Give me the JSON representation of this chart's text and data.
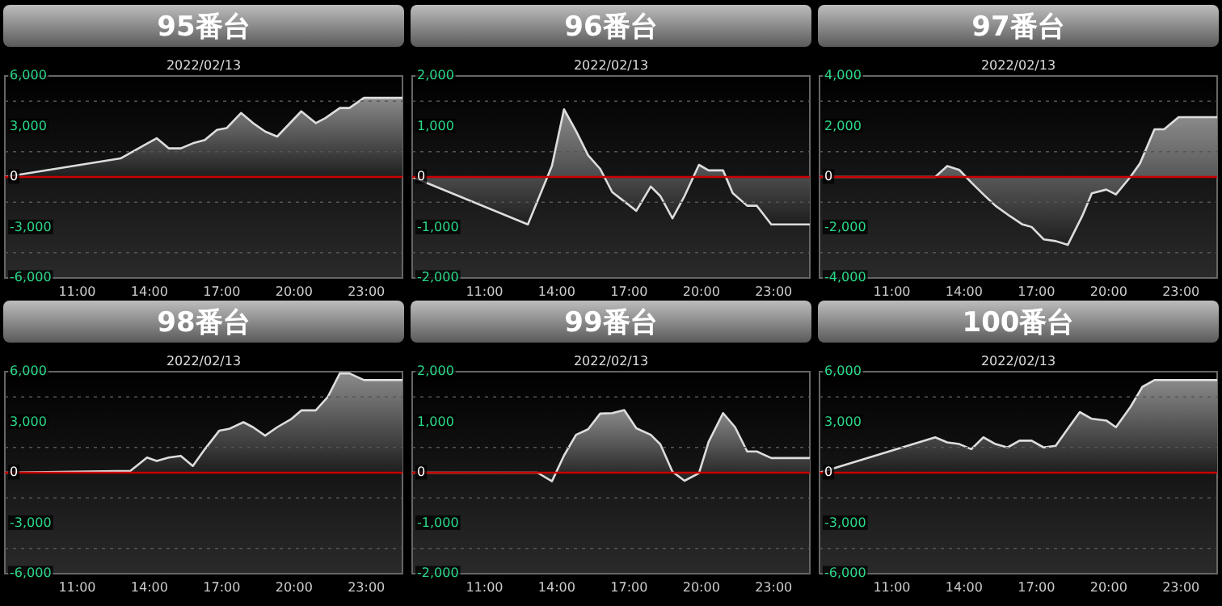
{
  "chart_data": [
    {
      "type": "area",
      "title": "95番台",
      "subtitle": "2022/02/13",
      "color": "#dddddd",
      "xlim": [
        8,
        24.5
      ],
      "xticks": [
        {
          "value": 11,
          "label": "11:00"
        },
        {
          "value": 14,
          "label": "14:00"
        },
        {
          "value": 17,
          "label": "17:00"
        },
        {
          "value": 20,
          "label": "20:00"
        },
        {
          "value": 23,
          "label": "23:00"
        }
      ],
      "ylim": [
        -6000,
        6000
      ],
      "yticks": [
        {
          "value": -6000,
          "label": "-6,000"
        },
        {
          "value": -4500,
          "label": null
        },
        {
          "value": -3000,
          "label": "-3,000"
        },
        {
          "value": -1500,
          "label": null
        },
        {
          "value": 0,
          "label": "0"
        },
        {
          "value": 1500,
          "label": null
        },
        {
          "value": 3000,
          "label": "3,000"
        },
        {
          "value": 4500,
          "label": null
        },
        {
          "value": 6000,
          "label": "6,000"
        }
      ],
      "grid": "y",
      "ref_lines": [
        {
          "axis": "y",
          "value": 0,
          "color": "#cc0000"
        }
      ],
      "x": [
        8,
        12.8,
        13.8,
        14.3,
        14.8,
        15.3,
        15.8,
        16.3,
        16.8,
        17.2,
        17.8,
        18.3,
        18.8,
        19.3,
        19.9,
        20.3,
        20.9,
        21.3,
        21.9,
        22.3,
        22.9,
        24.5
      ],
      "values": [
        0,
        1100,
        1900,
        2300,
        1700,
        1700,
        2000,
        2200,
        2800,
        2900,
        3800,
        3200,
        2700,
        2400,
        3300,
        3900,
        3200,
        3500,
        4100,
        4100,
        4700,
        4700
      ]
    },
    {
      "type": "area",
      "title": "96番台",
      "subtitle": "2022/02/13",
      "color": "#dddddd",
      "xlim": [
        8,
        24.5
      ],
      "xticks": [
        {
          "value": 11,
          "label": "11:00"
        },
        {
          "value": 14,
          "label": "14:00"
        },
        {
          "value": 17,
          "label": "17:00"
        },
        {
          "value": 20,
          "label": "20:00"
        },
        {
          "value": 23,
          "label": "23:00"
        }
      ],
      "ylim": [
        -2000,
        2000
      ],
      "yticks": [
        {
          "value": -2000,
          "label": "-2,000"
        },
        {
          "value": -1500,
          "label": null
        },
        {
          "value": -1000,
          "label": "-1,000"
        },
        {
          "value": -500,
          "label": null
        },
        {
          "value": 0,
          "label": "0"
        },
        {
          "value": 500,
          "label": null
        },
        {
          "value": 1000,
          "label": "1,000"
        },
        {
          "value": 1500,
          "label": null
        },
        {
          "value": 2000,
          "label": "2,000"
        }
      ],
      "grid": "y",
      "ref_lines": [
        {
          "axis": "y",
          "value": 0,
          "color": "#cc0000"
        }
      ],
      "x": [
        8,
        12.8,
        13.8,
        14.3,
        14.8,
        15.3,
        15.8,
        16.3,
        17.3,
        17.9,
        18.3,
        18.8,
        19.3,
        19.9,
        20.3,
        20.9,
        21.3,
        21.9,
        22.3,
        22.9,
        24.5
      ],
      "values": [
        0,
        -940,
        220,
        1340,
        910,
        430,
        160,
        -300,
        -670,
        -190,
        -380,
        -820,
        -380,
        240,
        130,
        130,
        -320,
        -570,
        -570,
        -940,
        -940
      ]
    },
    {
      "type": "area",
      "title": "97番台",
      "subtitle": "2022/02/13",
      "color": "#dddddd",
      "xlim": [
        8,
        24.5
      ],
      "xticks": [
        {
          "value": 11,
          "label": "11:00"
        },
        {
          "value": 14,
          "label": "14:00"
        },
        {
          "value": 17,
          "label": "17:00"
        },
        {
          "value": 20,
          "label": "20:00"
        },
        {
          "value": 23,
          "label": "23:00"
        }
      ],
      "ylim": [
        -4000,
        4000
      ],
      "yticks": [
        {
          "value": -4000,
          "label": "-4,000"
        },
        {
          "value": -3000,
          "label": null
        },
        {
          "value": -2000,
          "label": "-2,000"
        },
        {
          "value": -1000,
          "label": null
        },
        {
          "value": 0,
          "label": "0"
        },
        {
          "value": 1000,
          "label": null
        },
        {
          "value": 2000,
          "label": "2,000"
        },
        {
          "value": 3000,
          "label": null
        },
        {
          "value": 4000,
          "label": "4,000"
        }
      ],
      "grid": "y",
      "ref_lines": [
        {
          "axis": "y",
          "value": 0,
          "color": "#cc0000"
        }
      ],
      "x": [
        8,
        12.8,
        13.3,
        13.8,
        14.3,
        14.8,
        15.3,
        15.9,
        16.4,
        16.8,
        17.3,
        17.8,
        18.3,
        18.9,
        19.3,
        19.9,
        20.3,
        20.9,
        21.3,
        21.9,
        22.3,
        22.9,
        24.5
      ],
      "values": [
        0,
        0,
        430,
        280,
        -220,
        -690,
        -1140,
        -1550,
        -1870,
        -1980,
        -2470,
        -2540,
        -2690,
        -1550,
        -650,
        -500,
        -690,
        0,
        540,
        1890,
        1890,
        2370,
        2370
      ]
    },
    {
      "type": "area",
      "title": "98番台",
      "subtitle": "2022/02/13",
      "color": "#dddddd",
      "xlim": [
        8,
        24.5
      ],
      "xticks": [
        {
          "value": 11,
          "label": "11:00"
        },
        {
          "value": 14,
          "label": "14:00"
        },
        {
          "value": 17,
          "label": "17:00"
        },
        {
          "value": 20,
          "label": "20:00"
        },
        {
          "value": 23,
          "label": "23:00"
        }
      ],
      "ylim": [
        -6000,
        6000
      ],
      "yticks": [
        {
          "value": -6000,
          "label": "-6,000"
        },
        {
          "value": -4500,
          "label": null
        },
        {
          "value": -3000,
          "label": "-3,000"
        },
        {
          "value": -1500,
          "label": null
        },
        {
          "value": 0,
          "label": "0"
        },
        {
          "value": 1500,
          "label": null
        },
        {
          "value": 3000,
          "label": "3,000"
        },
        {
          "value": 4500,
          "label": null
        },
        {
          "value": 6000,
          "label": "6,000"
        }
      ],
      "grid": "y",
      "ref_lines": [
        {
          "axis": "y",
          "value": 0,
          "color": "#cc0000"
        }
      ],
      "x": [
        8,
        13.2,
        13.9,
        14.3,
        14.8,
        15.3,
        15.8,
        16.3,
        16.9,
        17.3,
        17.9,
        18.3,
        18.8,
        19.3,
        19.9,
        20.3,
        20.9,
        21.4,
        21.9,
        22.3,
        22.9,
        24.5
      ],
      "values": [
        0,
        100,
        900,
        700,
        900,
        1000,
        400,
        1400,
        2500,
        2600,
        3000,
        2700,
        2200,
        2700,
        3200,
        3700,
        3700,
        4500,
        5900,
        5900,
        5500,
        5500
      ]
    },
    {
      "type": "area",
      "title": "99番台",
      "subtitle": "2022/02/13",
      "color": "#dddddd",
      "xlim": [
        8,
        24.5
      ],
      "xticks": [
        {
          "value": 11,
          "label": "11:00"
        },
        {
          "value": 14,
          "label": "14:00"
        },
        {
          "value": 17,
          "label": "17:00"
        },
        {
          "value": 20,
          "label": "20:00"
        },
        {
          "value": 23,
          "label": "23:00"
        }
      ],
      "ylim": [
        -2000,
        2000
      ],
      "yticks": [
        {
          "value": -2000,
          "label": "-2,000"
        },
        {
          "value": -1500,
          "label": null
        },
        {
          "value": -1000,
          "label": "-1,000"
        },
        {
          "value": -500,
          "label": null
        },
        {
          "value": 0,
          "label": "0"
        },
        {
          "value": 500,
          "label": null
        },
        {
          "value": 1000,
          "label": "1,000"
        },
        {
          "value": 1500,
          "label": null
        },
        {
          "value": 2000,
          "label": "2,000"
        }
      ],
      "grid": "y",
      "ref_lines": [
        {
          "axis": "y",
          "value": 0,
          "color": "#cc0000"
        }
      ],
      "x": [
        8,
        13.2,
        13.8,
        14.3,
        14.8,
        15.3,
        15.8,
        16.3,
        16.8,
        17.3,
        17.9,
        18.3,
        18.8,
        19.3,
        19.9,
        20.3,
        20.9,
        21.4,
        21.9,
        22.3,
        22.9,
        24.5
      ],
      "values": [
        0,
        0,
        -170,
        340,
        750,
        860,
        1170,
        1180,
        1240,
        880,
        750,
        560,
        20,
        -160,
        -10,
        610,
        1180,
        900,
        420,
        420,
        290,
        290
      ]
    },
    {
      "type": "area",
      "title": "100番台",
      "subtitle": "2022/02/13",
      "color": "#dddddd",
      "xlim": [
        8,
        24.5
      ],
      "xticks": [
        {
          "value": 11,
          "label": "11:00"
        },
        {
          "value": 14,
          "label": "14:00"
        },
        {
          "value": 17,
          "label": "17:00"
        },
        {
          "value": 20,
          "label": "20:00"
        },
        {
          "value": 23,
          "label": "23:00"
        }
      ],
      "ylim": [
        -6000,
        6000
      ],
      "yticks": [
        {
          "value": -6000,
          "label": "-6,000"
        },
        {
          "value": -4500,
          "label": null
        },
        {
          "value": -3000,
          "label": "-3,000"
        },
        {
          "value": -1500,
          "label": null
        },
        {
          "value": 0,
          "label": "0"
        },
        {
          "value": 1500,
          "label": null
        },
        {
          "value": 3000,
          "label": "3,000"
        },
        {
          "value": 4500,
          "label": null
        },
        {
          "value": 6000,
          "label": "6,000"
        }
      ],
      "grid": "y",
      "ref_lines": [
        {
          "axis": "y",
          "value": 0,
          "color": "#cc0000"
        }
      ],
      "x": [
        8,
        12.8,
        13.3,
        13.8,
        14.3,
        14.8,
        15.3,
        15.8,
        16.3,
        16.8,
        17.3,
        17.8,
        18.3,
        18.8,
        19.3,
        19.9,
        20.3,
        20.9,
        21.4,
        21.9,
        24.5
      ],
      "values": [
        0,
        2100,
        1800,
        1700,
        1400,
        2100,
        1700,
        1500,
        1900,
        1900,
        1500,
        1600,
        2600,
        3600,
        3200,
        3100,
        2700,
        3900,
        5100,
        5500,
        5500
      ]
    }
  ]
}
